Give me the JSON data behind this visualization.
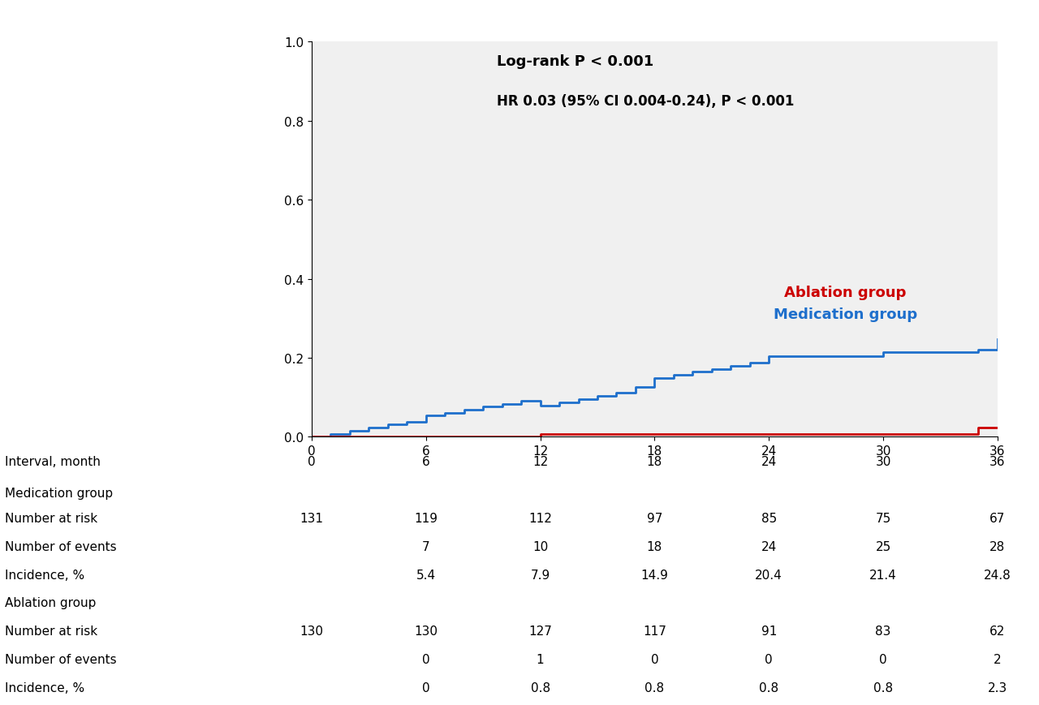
{
  "annotation_line1": "Log-rank P < 0.001",
  "annotation_line2": "HR 0.03 (95% CI 0.004-0.24), P < 0.001",
  "med_label": "Medication group",
  "abl_label": "Ablation group",
  "med_color": "#1E6FCC",
  "abl_color": "#CC0000",
  "ylim": [
    0,
    1.0
  ],
  "xlim": [
    0,
    36
  ],
  "yticks": [
    0.0,
    0.2,
    0.4,
    0.6,
    0.8,
    1.0
  ],
  "xticks": [
    0,
    6,
    12,
    18,
    24,
    30,
    36
  ],
  "med_x": [
    0,
    1,
    2,
    3,
    4,
    5,
    6,
    7,
    8,
    9,
    10,
    11,
    12,
    13,
    14,
    15,
    16,
    17,
    18,
    19,
    20,
    21,
    22,
    23,
    24,
    25,
    26,
    27,
    28,
    29,
    30,
    31,
    32,
    33,
    34,
    35,
    36
  ],
  "med_y": [
    0.0,
    0.008,
    0.016,
    0.023,
    0.031,
    0.038,
    0.054,
    0.061,
    0.069,
    0.076,
    0.083,
    0.091,
    0.079,
    0.087,
    0.095,
    0.103,
    0.111,
    0.126,
    0.149,
    0.156,
    0.164,
    0.172,
    0.18,
    0.187,
    0.204,
    0.204,
    0.204,
    0.204,
    0.204,
    0.204,
    0.214,
    0.214,
    0.214,
    0.214,
    0.214,
    0.221,
    0.248
  ],
  "abl_x": [
    0,
    1,
    2,
    3,
    4,
    5,
    6,
    7,
    8,
    9,
    10,
    11,
    12,
    13,
    14,
    15,
    16,
    17,
    18,
    19,
    20,
    21,
    22,
    23,
    24,
    25,
    26,
    27,
    28,
    29,
    30,
    31,
    32,
    33,
    34,
    35,
    36
  ],
  "abl_y": [
    0.0,
    0.0,
    0.0,
    0.0,
    0.0,
    0.0,
    0.0,
    0.0,
    0.0,
    0.0,
    0.0,
    0.0,
    0.008,
    0.008,
    0.008,
    0.008,
    0.008,
    0.008,
    0.008,
    0.008,
    0.008,
    0.008,
    0.008,
    0.008,
    0.008,
    0.008,
    0.008,
    0.008,
    0.008,
    0.008,
    0.008,
    0.008,
    0.008,
    0.008,
    0.008,
    0.023,
    0.023
  ],
  "table_intervals": [
    0,
    6,
    12,
    18,
    24,
    30,
    36
  ],
  "row_labels": [
    "Interval, month",
    "Medication group",
    "Number at risk",
    "Number of events",
    "Incidence, %",
    "Ablation group",
    "Number at risk",
    "Number of events",
    "Incidence, %"
  ],
  "med_at_risk": [
    "131",
    "119",
    "112",
    "97",
    "85",
    "75",
    "67"
  ],
  "med_events": [
    "",
    "7",
    "10",
    "18",
    "24",
    "25",
    "28"
  ],
  "med_incidence": [
    "",
    "5.4",
    "7.9",
    "14.9",
    "20.4",
    "21.4",
    "24.8"
  ],
  "abl_at_risk": [
    "130",
    "130",
    "127",
    "117",
    "91",
    "83",
    "62"
  ],
  "abl_events": [
    "",
    "0",
    "1",
    "0",
    "0",
    "0",
    "2"
  ],
  "abl_incidence": [
    "",
    "0",
    "0.8",
    "0.8",
    "0.8",
    "0.8",
    "2.3"
  ],
  "bg_color": "#FFFFFF",
  "plot_bg_color": "#F0F0F0"
}
